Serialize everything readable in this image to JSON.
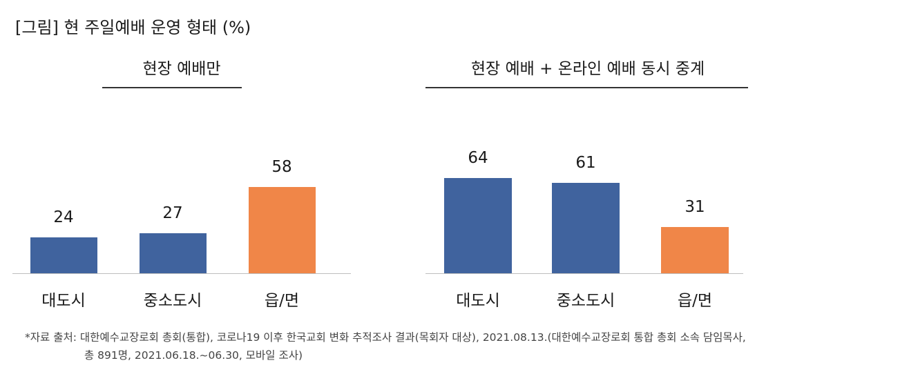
{
  "figure_title": "[그림] 현 주일예배 운영 형태 (%)",
  "colors": {
    "default": "#40639e",
    "highlight": "#f08648"
  },
  "chart_data": [
    {
      "type": "bar",
      "title": "현장 예배만",
      "categories": [
        "대도시",
        "중소도시",
        "읍/면"
      ],
      "values": [
        24,
        27,
        58
      ],
      "highlight_index": 2
    },
    {
      "type": "bar",
      "title": "현장 예배 + 온라인 예배 동시 중계",
      "categories": [
        "대도시",
        "중소도시",
        "읍/면"
      ],
      "values": [
        64,
        61,
        31
      ],
      "highlight_index": 2
    }
  ],
  "footnote": {
    "line1": "*자료 출처: 대한예수교장로회 총회(통합), 코로나19 이후 한국교회 변화 추적조사 결과(목회자 대상), 2021.08.13.(대한예수교장로회 통합 총회 소속 담임목사,",
    "line2": "총 891명, 2021.06.18.~06.30, 모바일 조사)"
  }
}
